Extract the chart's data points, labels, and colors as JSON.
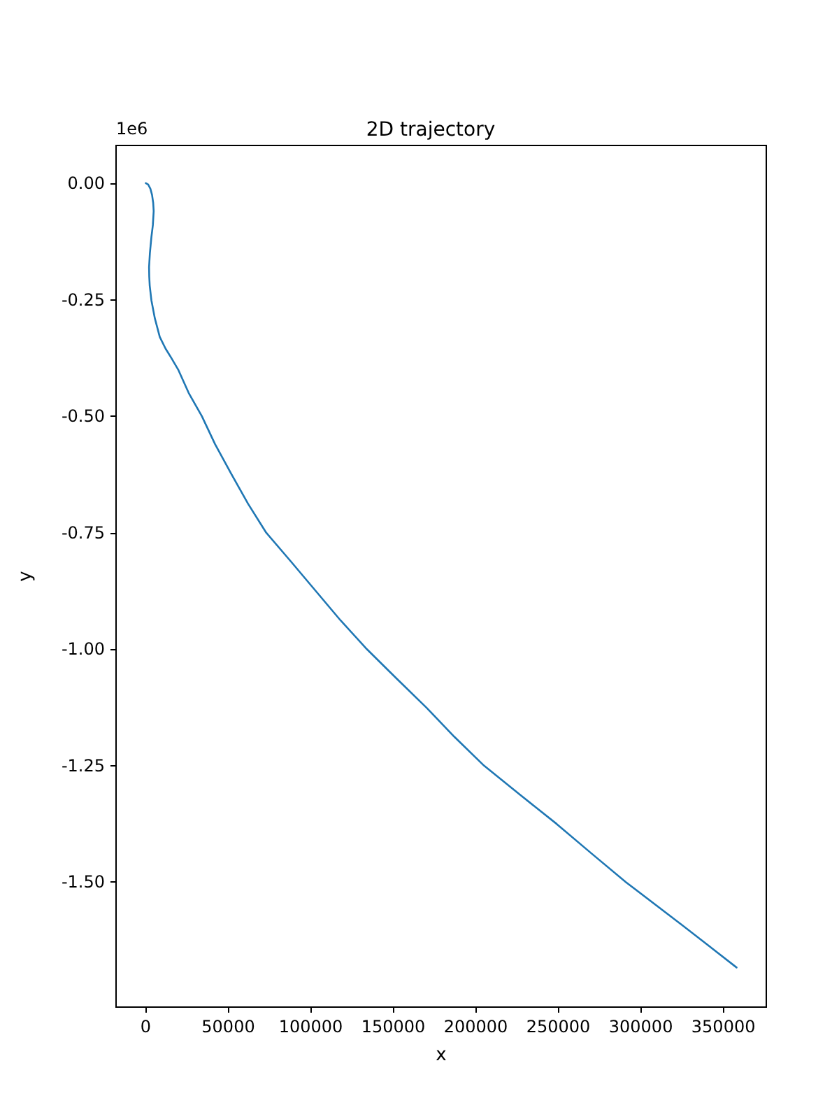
{
  "chart_data": {
    "type": "line",
    "title": "2D trajectory",
    "xlabel": "x",
    "ylabel": "y",
    "annotations": [
      "1e6"
    ],
    "x": [
      0,
      1500,
      2800,
      3800,
      4500,
      4800,
      4300,
      3400,
      2500,
      2000,
      2100,
      2400,
      3400,
      5500,
      8500,
      12000,
      15500,
      19800,
      26000,
      34000,
      42000,
      52000,
      62000,
      73000,
      88000,
      103000,
      118000,
      134000,
      152000,
      170000,
      187000,
      205000,
      227000,
      249000,
      270000,
      291000,
      325000,
      358000
    ],
    "series": [
      {
        "color": "#1f77b4",
        "values": [
          0,
          -0.003,
          -0.012,
          -0.025,
          -0.042,
          -0.06,
          -0.09,
          -0.116,
          -0.15,
          -0.18,
          -0.2,
          -0.22,
          -0.251,
          -0.29,
          -0.33,
          -0.355,
          -0.375,
          -0.401,
          -0.45,
          -0.5,
          -0.56,
          -0.625,
          -0.688,
          -0.75,
          -0.812,
          -0.875,
          -0.938,
          -1.0,
          -1.063,
          -1.125,
          -1.188,
          -1.25,
          -1.313,
          -1.375,
          -1.438,
          -1.5,
          -1.592,
          -1.683
        ]
      }
    ],
    "xlim": [
      -18000,
      376000
    ],
    "ylim": [
      -1.768,
      0.081
    ],
    "xticks": [
      0,
      50000,
      100000,
      150000,
      200000,
      250000,
      300000,
      350000
    ],
    "yticks": [
      {
        "value": 0,
        "label": "0.00"
      },
      {
        "value": -0.25,
        "label": "-0.25"
      },
      {
        "value": -0.5,
        "label": "-0.50"
      },
      {
        "value": -0.75,
        "label": "-0.75"
      },
      {
        "value": -1,
        "label": "-1.00"
      },
      {
        "value": -1.25,
        "label": "-1.25"
      },
      {
        "value": -1.5,
        "label": "-1.50"
      }
    ],
    "grid": false,
    "marker": "none",
    "line_style": "solid"
  }
}
